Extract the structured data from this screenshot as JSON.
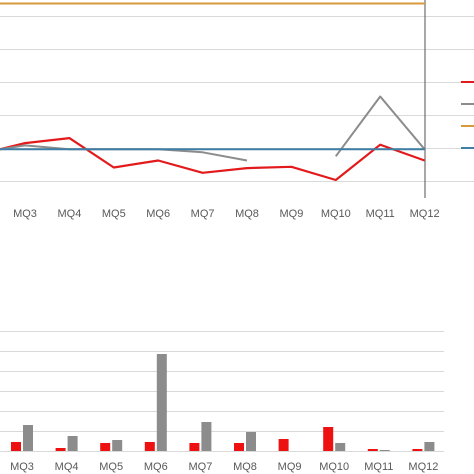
{
  "chart_data": [
    {
      "type": "line",
      "categories": [
        "MQ3",
        "MQ4",
        "MQ5",
        "MQ6",
        "MQ7",
        "MQ8",
        "MQ9",
        "MQ10",
        "MQ11",
        "MQ12"
      ],
      "gridlines": true,
      "legend_position": "right",
      "series": [
        {
          "color": "#e31a1c",
          "values": [
            0.15,
            0.3,
            -0.59,
            -0.38,
            -0.75,
            -0.61,
            -0.57,
            -0.97,
            0.1,
            -0.38
          ]
        },
        {
          "color": "#8c8c8c",
          "values": [
            0.08,
            -0.04,
            -0.04,
            -0.04,
            -0.13,
            -0.38,
            null,
            -0.25,
            1.56,
            -0.04
          ]
        },
        {
          "color": "#d69a3b",
          "values": [
            4.38,
            4.38,
            4.38,
            4.38,
            4.38,
            4.38,
            4.38,
            4.38,
            4.38,
            4.38
          ]
        },
        {
          "color": "#3f7fa6",
          "values": [
            -0.04,
            -0.04,
            -0.04,
            -0.04,
            -0.04,
            -0.04,
            -0.04,
            -0.04,
            -0.04,
            -0.04
          ]
        }
      ],
      "left_start": {
        "red": -0.04,
        "gray": -0.04
      },
      "ylim": [
        -1.5,
        4.6
      ]
    },
    {
      "type": "bar",
      "categories": [
        "MQ3",
        "MQ4",
        "MQ5",
        "MQ6",
        "MQ7",
        "MQ8",
        "MQ9",
        "MQ10",
        "MQ11",
        "MQ12"
      ],
      "gridlines": true,
      "series": [
        {
          "color": "#ee1111",
          "values": [
            9.0,
            3.0,
            8.0,
            9.0,
            8.0,
            8.0,
            12.0,
            24.0,
            2.0,
            2.0
          ]
        },
        {
          "color": "#8c8c8c",
          "values": [
            26.0,
            15.0,
            11.0,
            97.0,
            29.0,
            19.0,
            null,
            8.0,
            1.0,
            9.0
          ]
        }
      ],
      "ylim": [
        0,
        120
      ]
    }
  ]
}
